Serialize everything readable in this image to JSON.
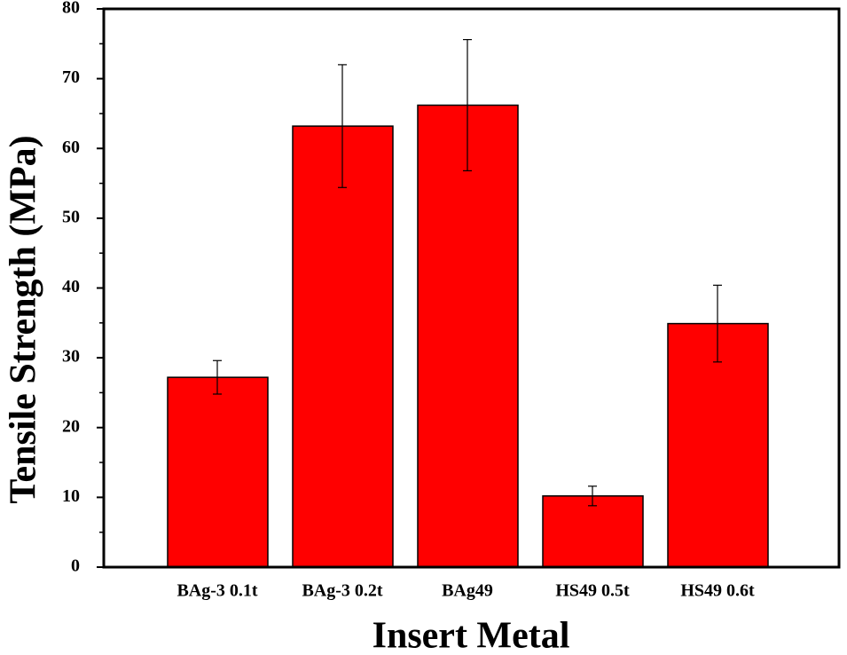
{
  "chart_data": {
    "type": "bar",
    "x_label": "Insert Metal",
    "y_label": "Tensile Strength (MPa)",
    "categories": [
      "BAg-3 0.1t",
      "BAg-3 0.2t",
      "BAg49",
      "HS49 0.5t",
      "HS49 0.6t"
    ],
    "values": [
      27.2,
      63.2,
      66.2,
      10.2,
      34.9
    ],
    "errors": [
      2.4,
      8.8,
      9.4,
      1.4,
      5.5
    ],
    "color": "#ff0000",
    "ylim": [
      0,
      80
    ],
    "yticks": [
      0,
      10,
      20,
      30,
      40,
      50,
      60,
      70,
      80
    ],
    "grid": false
  }
}
